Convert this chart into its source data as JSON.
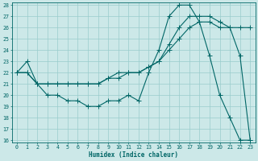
{
  "xlabel": "Humidex (Indice chaleur)",
  "bg_color": "#cce8e8",
  "line_color": "#006666",
  "grid_color": "#99cccc",
  "ylim": [
    16,
    28
  ],
  "xlim": [
    -0.5,
    23.5
  ],
  "yticks": [
    16,
    17,
    18,
    19,
    20,
    21,
    22,
    23,
    24,
    25,
    26,
    27,
    28
  ],
  "xticks": [
    0,
    1,
    2,
    3,
    4,
    5,
    6,
    7,
    8,
    9,
    10,
    11,
    12,
    13,
    14,
    15,
    16,
    17,
    18,
    19,
    20,
    21,
    22,
    23
  ],
  "curve1_x": [
    0,
    1,
    2,
    3,
    4,
    5,
    6,
    7,
    8,
    9,
    10,
    11,
    12,
    13,
    14,
    15,
    16,
    17,
    18,
    19,
    20,
    21,
    22,
    23
  ],
  "curve1_y": [
    22,
    23,
    21,
    20,
    20,
    19.5,
    19.5,
    19,
    19,
    19.5,
    19.5,
    20,
    19.5,
    22,
    24,
    27,
    28,
    28,
    26.5,
    23.5,
    20,
    18,
    16,
    16
  ],
  "curve2_x": [
    0,
    1,
    2,
    3,
    4,
    5,
    6,
    7,
    8,
    9,
    10,
    11,
    12,
    13,
    14,
    15,
    16,
    17,
    18,
    19,
    20,
    21,
    22,
    23
  ],
  "curve2_y": [
    22,
    22,
    21,
    21,
    21,
    21,
    21,
    21,
    21,
    21.5,
    21.5,
    22,
    22,
    22.5,
    23,
    24.5,
    26,
    27,
    27,
    27,
    26.5,
    26,
    26,
    26
  ],
  "curve3_x": [
    0,
    1,
    2,
    3,
    4,
    5,
    6,
    7,
    8,
    9,
    10,
    11,
    12,
    13,
    14,
    15,
    16,
    17,
    18,
    19,
    20,
    21,
    22,
    23
  ],
  "curve3_y": [
    22,
    22,
    21,
    21,
    21,
    21,
    21,
    21,
    21,
    21.5,
    22,
    22,
    22,
    22.5,
    23,
    24,
    25,
    26,
    26.5,
    26.5,
    26,
    26,
    23.5,
    16
  ],
  "xlabel_fontsize": 5.5,
  "tick_fontsize": 4.8,
  "linewidth": 0.8,
  "markersize": 1.8
}
